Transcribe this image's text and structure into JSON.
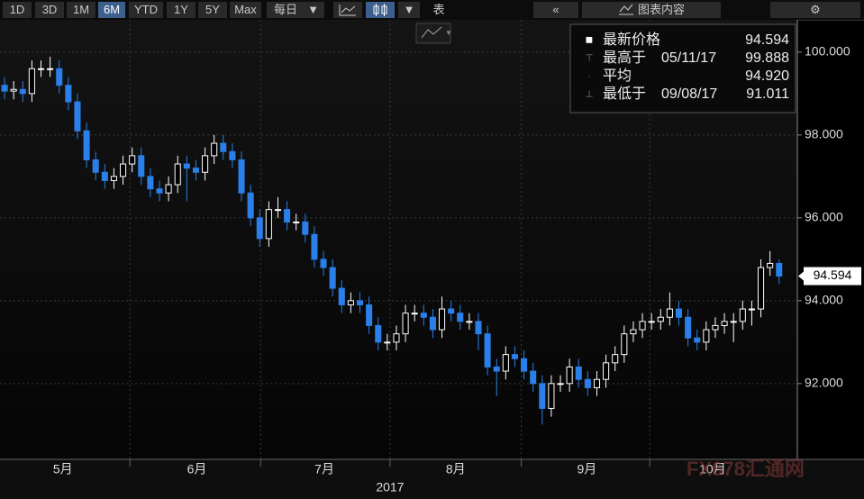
{
  "toolbar": {
    "ranges": [
      "1D",
      "3D",
      "1M",
      "6M",
      "YTD",
      "1Y",
      "5Y",
      "Max"
    ],
    "active_range": "6M",
    "frequency": "每日",
    "table": "表",
    "chart_contents": "图表内容"
  },
  "chart_data": {
    "type": "candlestick",
    "open": [
      99.2,
      99.06,
      99.1,
      99.0,
      99.6,
      99.6,
      99.6,
      99.2,
      98.8,
      98.1,
      97.4,
      97.1,
      96.9,
      97.0,
      97.3,
      97.5,
      97.0,
      96.7,
      96.6,
      96.8,
      97.3,
      97.2,
      97.1,
      97.5,
      97.8,
      97.6,
      97.4,
      96.6,
      96.0,
      95.5,
      96.2,
      96.2,
      95.9,
      95.9,
      95.6,
      95.0,
      94.8,
      94.3,
      93.9,
      94.0,
      93.9,
      93.4,
      93.0,
      93.0,
      93.2,
      93.7,
      93.7,
      93.6,
      93.3,
      93.8,
      93.7,
      93.5,
      93.5,
      93.2,
      92.4,
      92.3,
      92.7,
      92.6,
      92.3,
      92.0,
      91.4,
      92.0,
      92.0,
      92.4,
      92.1,
      91.9,
      92.1,
      92.5,
      92.7,
      93.2,
      93.3,
      93.5,
      93.5,
      93.6,
      93.8,
      93.6,
      93.1,
      93.0,
      93.3,
      93.4,
      93.5,
      93.5,
      93.8,
      93.8,
      94.8,
      94.9
    ],
    "high": [
      99.4,
      99.3,
      99.3,
      99.8,
      99.8,
      99.888,
      99.8,
      99.4,
      99.0,
      98.3,
      97.6,
      97.3,
      97.2,
      97.5,
      97.7,
      97.7,
      97.2,
      96.9,
      97.0,
      97.5,
      97.5,
      97.4,
      97.7,
      98.0,
      98.0,
      97.8,
      97.6,
      96.8,
      96.2,
      96.4,
      96.5,
      96.4,
      96.1,
      96.1,
      95.8,
      95.2,
      95.0,
      94.5,
      94.2,
      94.2,
      94.1,
      93.6,
      93.2,
      93.4,
      93.9,
      93.9,
      93.9,
      93.8,
      94.1,
      94.0,
      93.9,
      93.7,
      93.7,
      93.4,
      92.6,
      92.9,
      92.9,
      92.8,
      92.5,
      92.2,
      92.2,
      92.2,
      92.6,
      92.6,
      92.3,
      92.3,
      92.7,
      92.9,
      93.4,
      93.5,
      93.7,
      93.7,
      93.8,
      94.2,
      94.0,
      93.8,
      93.3,
      93.5,
      93.6,
      93.7,
      93.7,
      94.0,
      94.0,
      95.0,
      95.2,
      95.0
    ],
    "low": [
      98.86,
      98.86,
      98.8,
      98.8,
      99.4,
      99.4,
      99.0,
      98.6,
      97.9,
      97.2,
      96.9,
      96.7,
      96.7,
      96.8,
      97.1,
      96.8,
      96.5,
      96.4,
      96.4,
      96.6,
      96.4,
      96.9,
      96.9,
      97.3,
      97.4,
      97.2,
      96.4,
      95.8,
      95.3,
      95.3,
      96.0,
      95.7,
      95.7,
      95.4,
      94.8,
      94.6,
      94.1,
      93.7,
      93.7,
      93.7,
      93.2,
      92.8,
      92.8,
      92.8,
      93.0,
      93.5,
      93.4,
      93.1,
      93.1,
      93.5,
      93.3,
      93.3,
      92.8,
      92.2,
      91.7,
      92.1,
      92.4,
      92.1,
      91.8,
      91.011,
      91.2,
      91.8,
      91.8,
      91.9,
      91.7,
      91.7,
      91.9,
      92.3,
      92.5,
      93.0,
      93.1,
      93.3,
      93.3,
      93.4,
      93.4,
      92.9,
      92.8,
      92.8,
      93.1,
      93.2,
      93.0,
      93.3,
      93.4,
      93.6,
      94.6,
      94.4
    ],
    "close": [
      99.06,
      99.1,
      99.0,
      99.6,
      99.6,
      99.6,
      99.2,
      98.8,
      98.1,
      97.4,
      97.1,
      96.9,
      97.0,
      97.3,
      97.5,
      97.0,
      96.7,
      96.6,
      96.8,
      97.3,
      97.2,
      97.1,
      97.5,
      97.8,
      97.6,
      97.4,
      96.6,
      96.0,
      95.5,
      96.2,
      96.2,
      95.9,
      95.9,
      95.6,
      95.0,
      94.8,
      94.3,
      93.9,
      94.0,
      93.9,
      93.4,
      93.0,
      93.0,
      93.2,
      93.7,
      93.7,
      93.6,
      93.3,
      93.8,
      93.7,
      93.5,
      93.5,
      93.2,
      92.4,
      92.3,
      92.7,
      92.6,
      92.3,
      92.0,
      91.4,
      92.0,
      92.0,
      92.4,
      92.1,
      91.9,
      92.1,
      92.5,
      92.7,
      93.2,
      93.3,
      93.5,
      93.5,
      93.6,
      93.8,
      93.6,
      93.1,
      93.0,
      93.3,
      93.4,
      93.5,
      93.5,
      93.8,
      93.8,
      94.8,
      94.9,
      94.594
    ],
    "up_color": "#ffffff",
    "down_color": "#2a7fe8",
    "xlim": [
      -0.5,
      87
    ],
    "xticks": [
      {
        "value": 6.4,
        "label": "5月"
      },
      {
        "value": 21.1,
        "label": "6月"
      },
      {
        "value": 35.1,
        "label": "7月"
      },
      {
        "value": 49.5,
        "label": "8月"
      },
      {
        "value": 63.9,
        "label": "9月"
      },
      {
        "value": 77.7,
        "label": "10月"
      }
    ],
    "year_label": "2017",
    "ylim": [
      90.17,
      100.78
    ],
    "yticks": [
      {
        "value": 92,
        "label": "92.000"
      },
      {
        "value": 94,
        "label": "94.000"
      },
      {
        "value": 96,
        "label": "96.000"
      },
      {
        "value": 98,
        "label": "98.000"
      },
      {
        "value": 100,
        "label": "100.000"
      }
    ],
    "grid": true,
    "last_price": {
      "value": 94.594,
      "label": "94.594"
    },
    "legend": [
      {
        "label": "最新价格",
        "value": 94.594
      },
      {
        "label": "最高于",
        "date": "05/11/17",
        "value": 99.888
      },
      {
        "label": "平均",
        "value": 94.92,
        "value_label": "94.920"
      },
      {
        "label": "最低于",
        "date": "09/08/17",
        "value": 91.011
      }
    ],
    "watermark": "FX678汇通网"
  }
}
